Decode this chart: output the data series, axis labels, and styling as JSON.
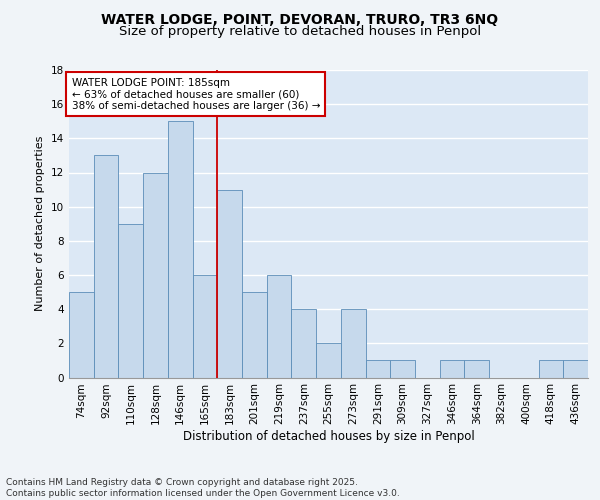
{
  "title": "WATER LODGE, POINT, DEVORAN, TRURO, TR3 6NQ",
  "subtitle": "Size of property relative to detached houses in Penpol",
  "xlabel": "Distribution of detached houses by size in Penpol",
  "ylabel": "Number of detached properties",
  "categories": [
    "74sqm",
    "92sqm",
    "110sqm",
    "128sqm",
    "146sqm",
    "165sqm",
    "183sqm",
    "201sqm",
    "219sqm",
    "237sqm",
    "255sqm",
    "273sqm",
    "291sqm",
    "309sqm",
    "327sqm",
    "346sqm",
    "364sqm",
    "382sqm",
    "400sqm",
    "418sqm",
    "436sqm"
  ],
  "values": [
    5,
    13,
    9,
    12,
    15,
    6,
    11,
    5,
    6,
    4,
    2,
    4,
    1,
    1,
    0,
    1,
    1,
    0,
    0,
    1,
    1
  ],
  "bar_color": "#c6d9ec",
  "bar_edge_color": "#5b8db8",
  "background_color": "#dce8f5",
  "grid_color": "#ffffff",
  "annotation_text": "WATER LODGE POINT: 185sqm\n← 63% of detached houses are smaller (60)\n38% of semi-detached houses are larger (36) →",
  "annotation_box_color": "#ffffff",
  "annotation_box_edge": "#cc0000",
  "vline_color": "#cc0000",
  "property_bin_index": 6,
  "ylim": [
    0,
    18
  ],
  "yticks": [
    0,
    2,
    4,
    6,
    8,
    10,
    12,
    14,
    16,
    18
  ],
  "footer": "Contains HM Land Registry data © Crown copyright and database right 2025.\nContains public sector information licensed under the Open Government Licence v3.0.",
  "title_fontsize": 10,
  "subtitle_fontsize": 9.5,
  "xlabel_fontsize": 8.5,
  "ylabel_fontsize": 8,
  "tick_fontsize": 7.5,
  "footer_fontsize": 6.5,
  "annotation_fontsize": 7.5
}
